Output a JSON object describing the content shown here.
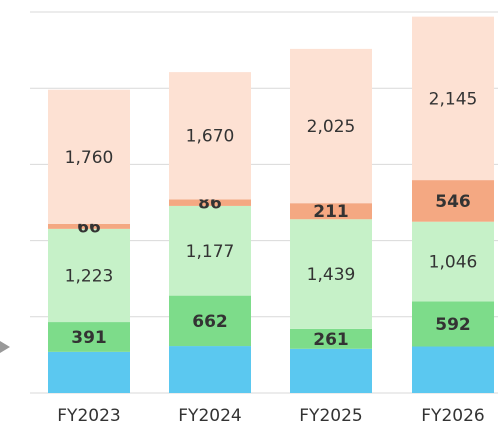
{
  "chart_data": {
    "type": "bar",
    "stacked": true,
    "categories": [
      "FY2023",
      "FY2024",
      "FY2025",
      "FY2026"
    ],
    "series": [
      {
        "color": "#5bc8f0",
        "values": [
          540,
          616,
          580,
          610
        ]
      },
      {
        "color": "#7ddc8a",
        "values": [
          391,
          662,
          261,
          592
        ],
        "value_labels": [
          "391",
          "662",
          "261",
          "592"
        ],
        "bold": true
      },
      {
        "color": "#c6f1c8",
        "values": [
          1223,
          1177,
          1439,
          1046
        ],
        "value_labels": [
          "1,223",
          "1,177",
          "1,439",
          "1,046"
        ]
      },
      {
        "color": "#f4a882",
        "values": [
          66,
          86,
          211,
          546
        ],
        "value_labels": [
          "66",
          "86",
          "211",
          "546"
        ],
        "bold": true
      },
      {
        "color": "#fde1d3",
        "values": [
          1760,
          1670,
          2025,
          2145
        ],
        "value_labels": [
          "1,760",
          "1,670",
          "2,025",
          "2,145"
        ]
      }
    ],
    "ylim": [
      0,
      5000
    ],
    "yticks": [
      0,
      1000,
      2000,
      3000,
      4000,
      5000
    ],
    "grid": true
  }
}
